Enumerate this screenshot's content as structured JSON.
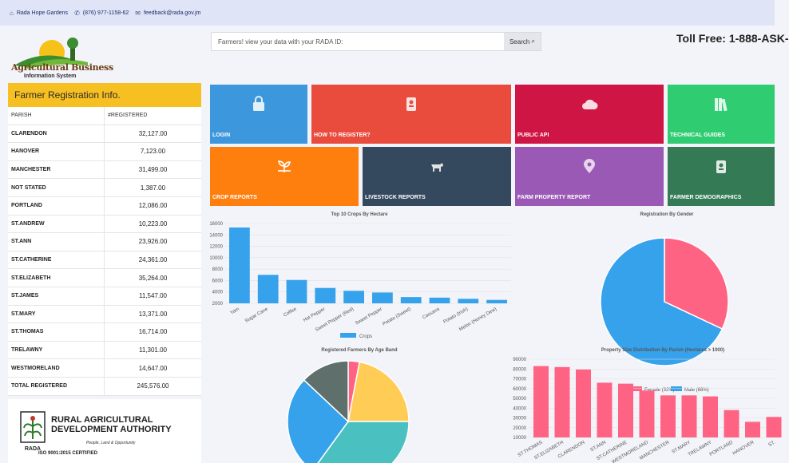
{
  "topbar": {
    "org": "Rada Hope Gardens",
    "phone": "(876) 977-1158-62",
    "email": "feedback@rada.gov.jm"
  },
  "logo": {
    "title": "Agricultural Business",
    "subtitle": "Information System"
  },
  "search": {
    "placeholder": "Farmers! view your data with your RADA ID:",
    "button": "Search"
  },
  "toll_free": "Toll Free: 1-888-ASK-",
  "panel": {
    "title": "Farmer Registration Info.",
    "col_parish": "PARISH",
    "col_registered": "#REGISTERED",
    "rows": [
      {
        "parish": "CLARENDON",
        "value": "32,127.00"
      },
      {
        "parish": "HANOVER",
        "value": "7,123.00"
      },
      {
        "parish": "MANCHESTER",
        "value": "31,499.00"
      },
      {
        "parish": "NOT STATED",
        "value": "1,387.00"
      },
      {
        "parish": "PORTLAND",
        "value": "12,086.00"
      },
      {
        "parish": "ST.ANDREW",
        "value": "10,223.00"
      },
      {
        "parish": "ST.ANN",
        "value": "23,926.00"
      },
      {
        "parish": "ST.CATHERINE",
        "value": "24,361.00"
      },
      {
        "parish": "ST.ELIZABETH",
        "value": "35,264.00"
      },
      {
        "parish": "ST.JAMES",
        "value": "11,547.00"
      },
      {
        "parish": "ST.MARY",
        "value": "13,371.00"
      },
      {
        "parish": "ST.THOMAS",
        "value": "16,714.00"
      },
      {
        "parish": "TRELAWNY",
        "value": "11,301.00"
      },
      {
        "parish": "WESTMORELAND",
        "value": "14,647.00"
      },
      {
        "parish": "TOTAL REGISTERED",
        "value": "245,576.00"
      }
    ]
  },
  "rada": {
    "title_line1": "RURAL AGRICULTURAL",
    "title_line2": "DEVELOPMENT AUTHORITY",
    "tagline": "People, Land & Opportunity",
    "iso": "ISO 9001:2015 CERTIFIED",
    "mark": "RADA"
  },
  "tiles": [
    {
      "label": "LOGIN",
      "color": "#3d97dc",
      "icon": "lock-icon"
    },
    {
      "label": "HOW TO REGISTER?",
      "color": "#e94b3c",
      "icon": "id-badge-icon"
    },
    {
      "label": "PUBLIC API",
      "color": "#cf1543",
      "icon": "cloud-icon"
    },
    {
      "label": "TECHNICAL GUIDES",
      "color": "#2fcc71",
      "icon": "books-icon"
    },
    {
      "label": "CROP REPORTS",
      "color": "#ff7f0e",
      "icon": "seedling-icon"
    },
    {
      "label": "LIVESTOCK REPORTS",
      "color": "#35495e",
      "icon": "cow-icon"
    },
    {
      "label": "FARM PROPERTY REPORT",
      "color": "#9b59b6",
      "icon": "map-marker-icon"
    },
    {
      "label": "FARMER DEMOGRAPHICS",
      "color": "#347a55",
      "icon": "person-badge-icon"
    }
  ],
  "chart_data": [
    {
      "type": "bar",
      "title": "Top 10 Crops By Hectare",
      "categories": [
        "Yam",
        "Sugar Cane",
        "Coffee",
        "Hot Pepper",
        "Sweet Pepper (Red)",
        "Sweet Pepper",
        "Potato (Sweet)",
        "Cassava",
        "Potato (Irish)",
        "Melon (Honey Dew)"
      ],
      "series": [
        {
          "name": "Crops",
          "values": [
            15300,
            7000,
            6100,
            4700,
            4200,
            3900,
            3100,
            3000,
            2800,
            2600
          ]
        }
      ],
      "ylim": [
        2000,
        16000
      ],
      "yticks": [
        "2000",
        "4000",
        "6000",
        "8000",
        "10000",
        "12000",
        "14000",
        "16000"
      ],
      "color": "#36a2eb"
    },
    {
      "type": "pie",
      "title": "Registration By Gender",
      "labels": [
        "Female (32%)",
        "Male (68%)"
      ],
      "values": [
        32,
        68
      ],
      "colors": [
        "#ff6384",
        "#36a2eb"
      ]
    },
    {
      "type": "pie",
      "title": "Registered Farmers By Age Band",
      "values": [
        3,
        22,
        35,
        27,
        13
      ],
      "colors": [
        "#ff6384",
        "#ffcd56",
        "#4bc0c0",
        "#36a2eb",
        "#5f6f6b"
      ]
    },
    {
      "type": "bar",
      "title": "Property Size Distribution By Parish (Hectares > 1000)",
      "categories": [
        "ST.THOMAS",
        "ST.ELIZABETH",
        "CLARENDON",
        "ST.ANN",
        "ST.CATHERINE",
        "WESTMORELAND",
        "MANCHESTER",
        "ST.MARY",
        "TRELAWNY",
        "PORTLAND",
        "HANOVER",
        "ST."
      ],
      "values": [
        83000,
        82000,
        79500,
        66000,
        65000,
        58000,
        53000,
        53000,
        52000,
        38000,
        26000,
        31000
      ],
      "ylim": [
        10000,
        90000
      ],
      "yticks": [
        "10000",
        "20000",
        "30000",
        "40000",
        "50000",
        "60000",
        "70000",
        "80000",
        "90000"
      ],
      "color": "#ff6384"
    }
  ]
}
